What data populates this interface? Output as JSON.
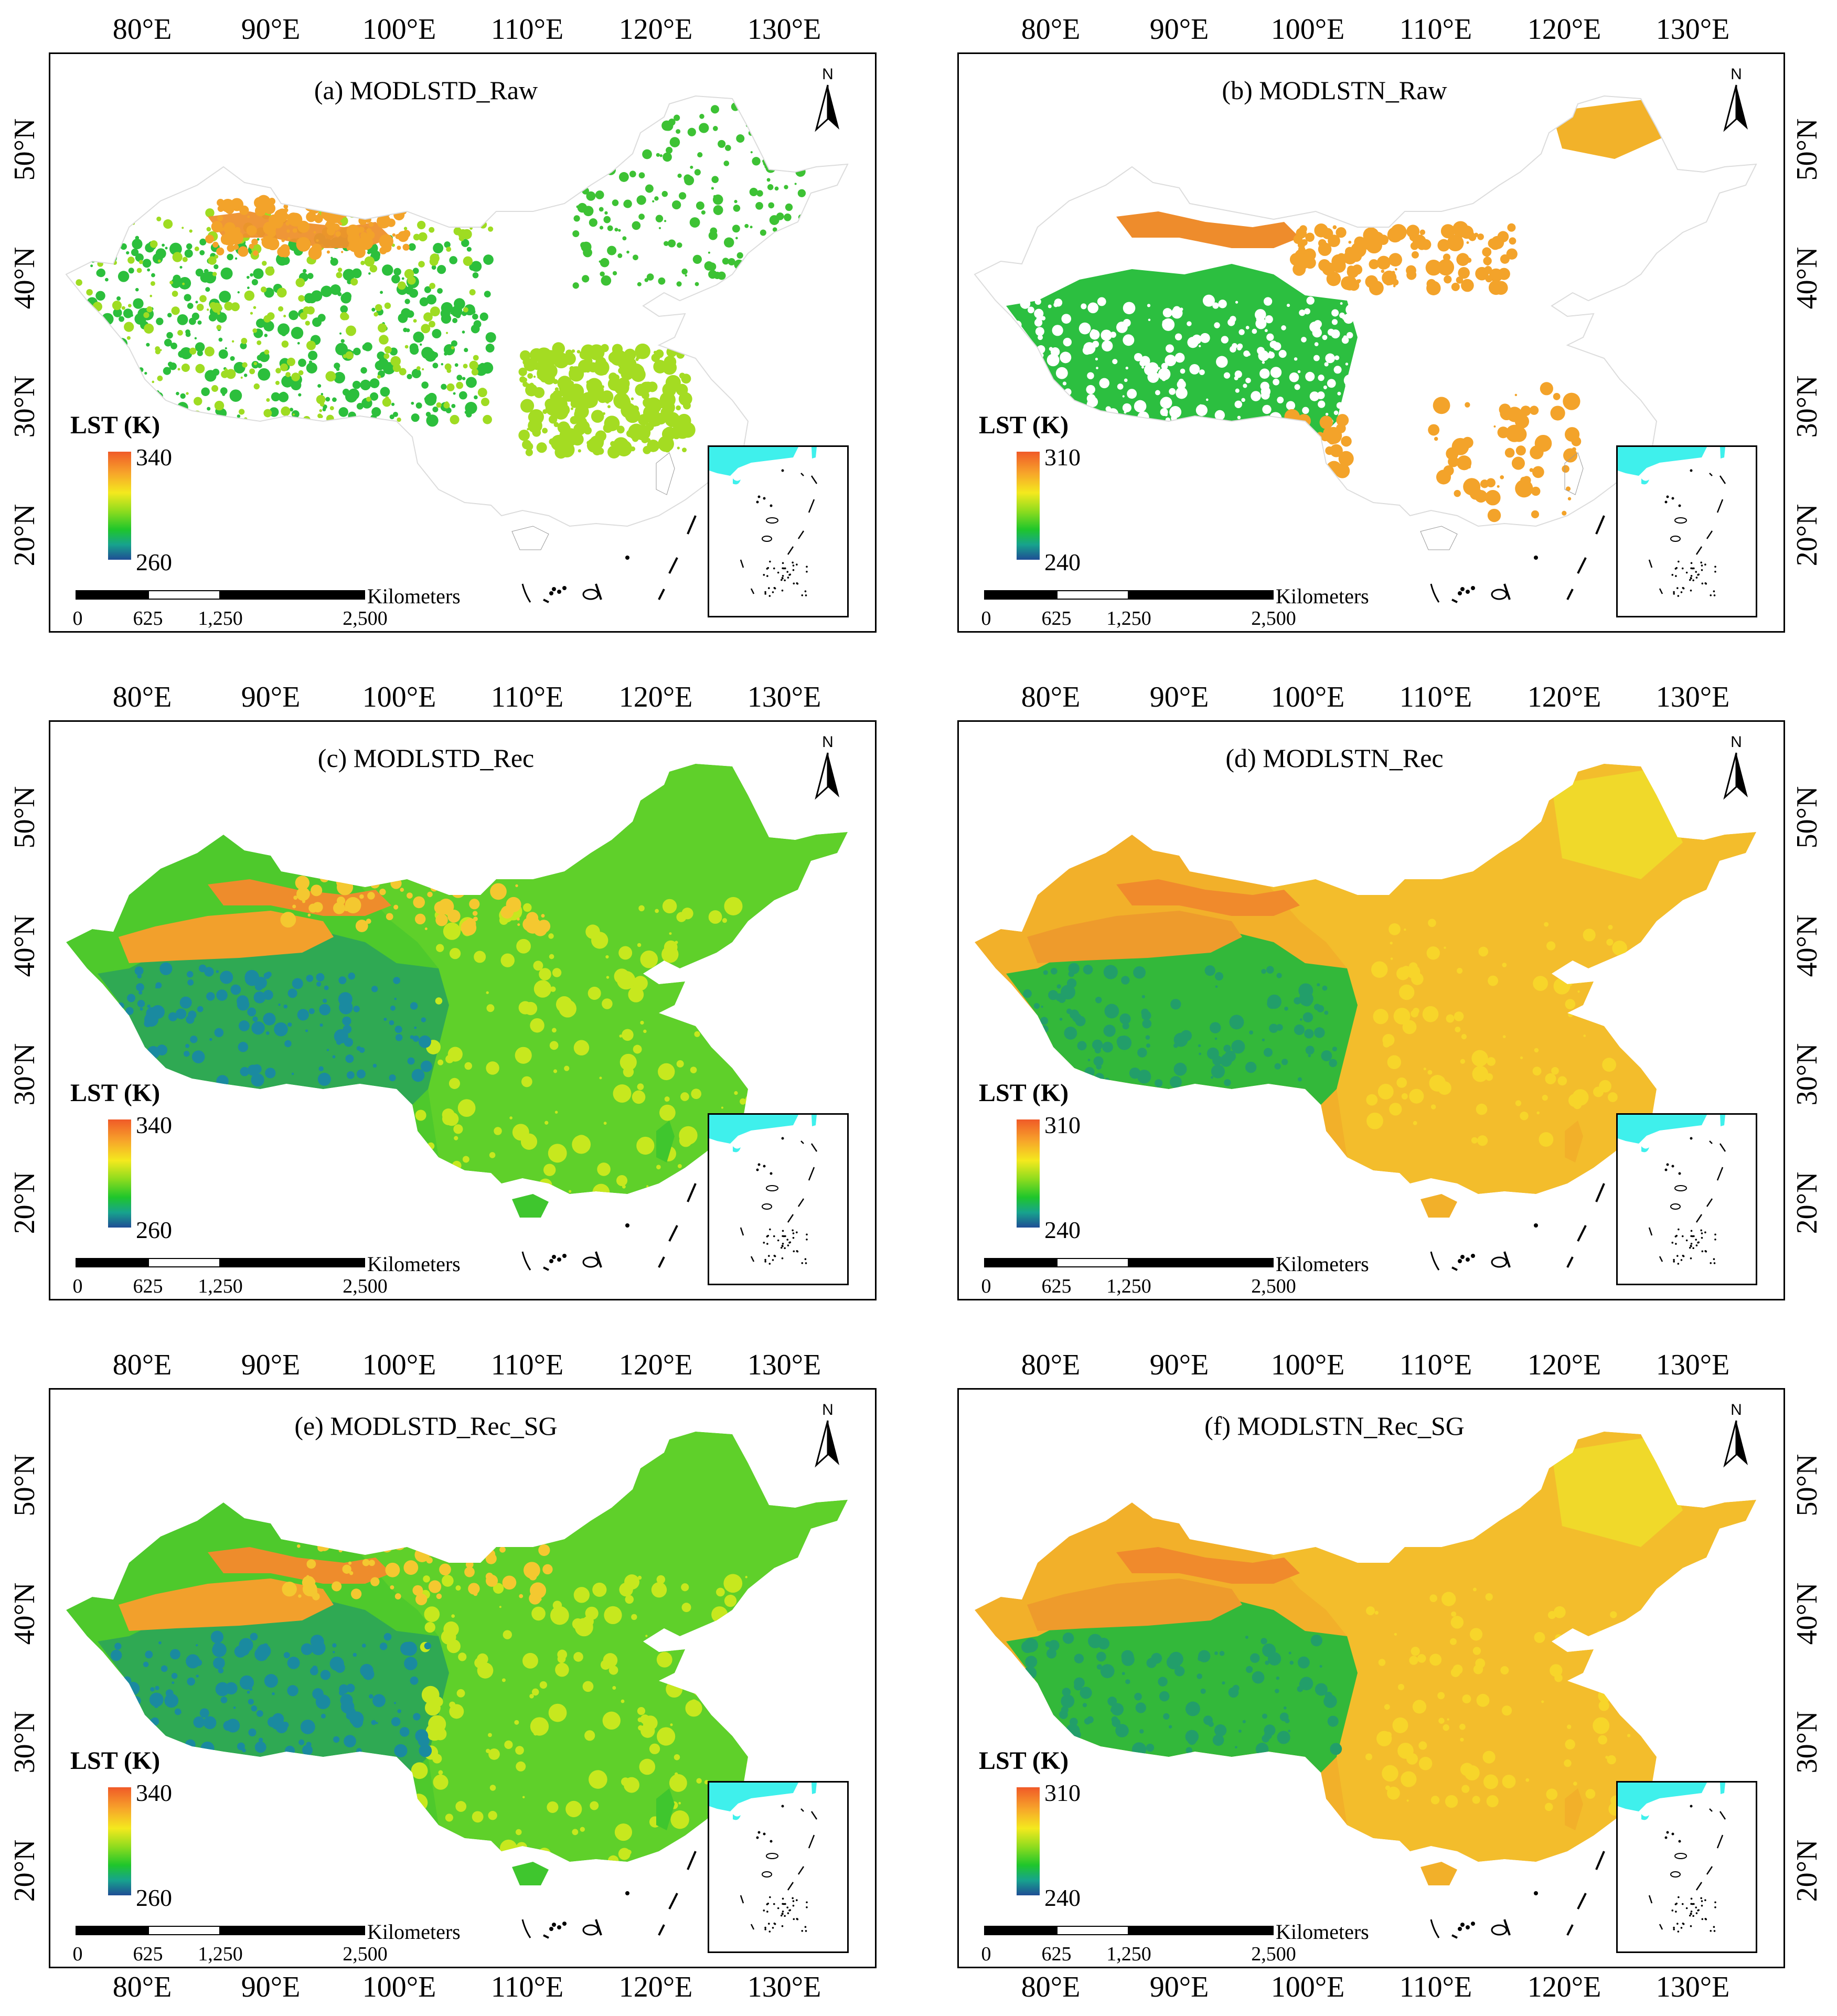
{
  "axes": {
    "lon_labels": [
      "80°E",
      "90°E",
      "100°E",
      "110°E",
      "120°E",
      "130°E"
    ],
    "lat_labels": [
      "50°N",
      "40°N",
      "30°N",
      "20°N"
    ]
  },
  "common": {
    "legend_title": "LST (K)",
    "scale_unit": "Kilometers",
    "scale_ticks": [
      "0",
      "625",
      "1,250",
      "2,500"
    ],
    "north_label": "N"
  },
  "colors": {
    "ramp": [
      "#f05a28",
      "#f7a52a",
      "#f4e91e",
      "#8fdc1e",
      "#1fc62b",
      "#17a38d",
      "#1f4d95"
    ],
    "inset_sea": "#3ff0ec"
  },
  "panels": [
    {
      "title": "(a) MODLSTD_Raw",
      "legend_max": "340",
      "legend_min": "260",
      "style": "raw_day"
    },
    {
      "title": "(b) MODLSTN_Raw",
      "legend_max": "310",
      "legend_min": "240",
      "style": "raw_night"
    },
    {
      "title": "(c) MODLSTD_Rec",
      "legend_max": "340",
      "legend_min": "260",
      "style": "rec_day"
    },
    {
      "title": "(d) MODLSTN_Rec",
      "legend_max": "310",
      "legend_min": "240",
      "style": "rec_night"
    },
    {
      "title": "(e) MODLSTD_Rec_SG",
      "legend_max": "340",
      "legend_min": "260",
      "style": "sg_day"
    },
    {
      "title": "(f) MODLSTN_Rec_SG",
      "legend_max": "310",
      "legend_min": "240",
      "style": "sg_night"
    }
  ]
}
